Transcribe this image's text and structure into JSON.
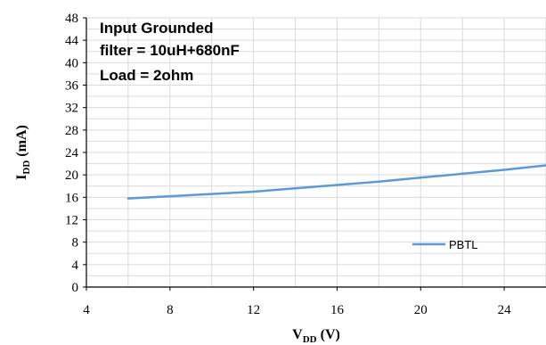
{
  "chart_data": {
    "type": "line",
    "xlabel_main": "V",
    "xlabel_sub": "DD",
    "xlabel_unit": " (V)",
    "ylabel_main": "I",
    "ylabel_sub": "DD",
    "ylabel_unit": " (mA)",
    "xlim": [
      4,
      26
    ],
    "ylim": [
      0,
      48
    ],
    "xticks": [
      4,
      8,
      12,
      16,
      20,
      24
    ],
    "yticks": [
      0,
      4,
      8,
      12,
      16,
      20,
      24,
      28,
      32,
      36,
      40,
      44,
      48
    ],
    "x_gridlines": [
      4,
      6,
      8,
      10,
      12,
      14,
      16,
      18,
      20,
      22,
      24,
      26
    ],
    "y_gridlines": [
      0,
      2,
      4,
      6,
      8,
      10,
      12,
      14,
      16,
      18,
      20,
      22,
      24,
      26,
      28,
      30,
      32,
      34,
      36,
      38,
      40,
      42,
      44,
      46,
      48
    ],
    "grid": true,
    "legend_position": "bottom-right",
    "annotations": [
      "Input Grounded",
      "filter = 10uH+680nF",
      "Load = 2ohm"
    ],
    "series": [
      {
        "name": "PBTL",
        "color": "#5b9bd5",
        "x": [
          6,
          8,
          10,
          12,
          14,
          16,
          18,
          20,
          22,
          24,
          26
        ],
        "y": [
          15.8,
          16.2,
          16.6,
          17.0,
          17.6,
          18.2,
          18.8,
          19.5,
          20.2,
          20.9,
          21.7
        ]
      }
    ]
  }
}
